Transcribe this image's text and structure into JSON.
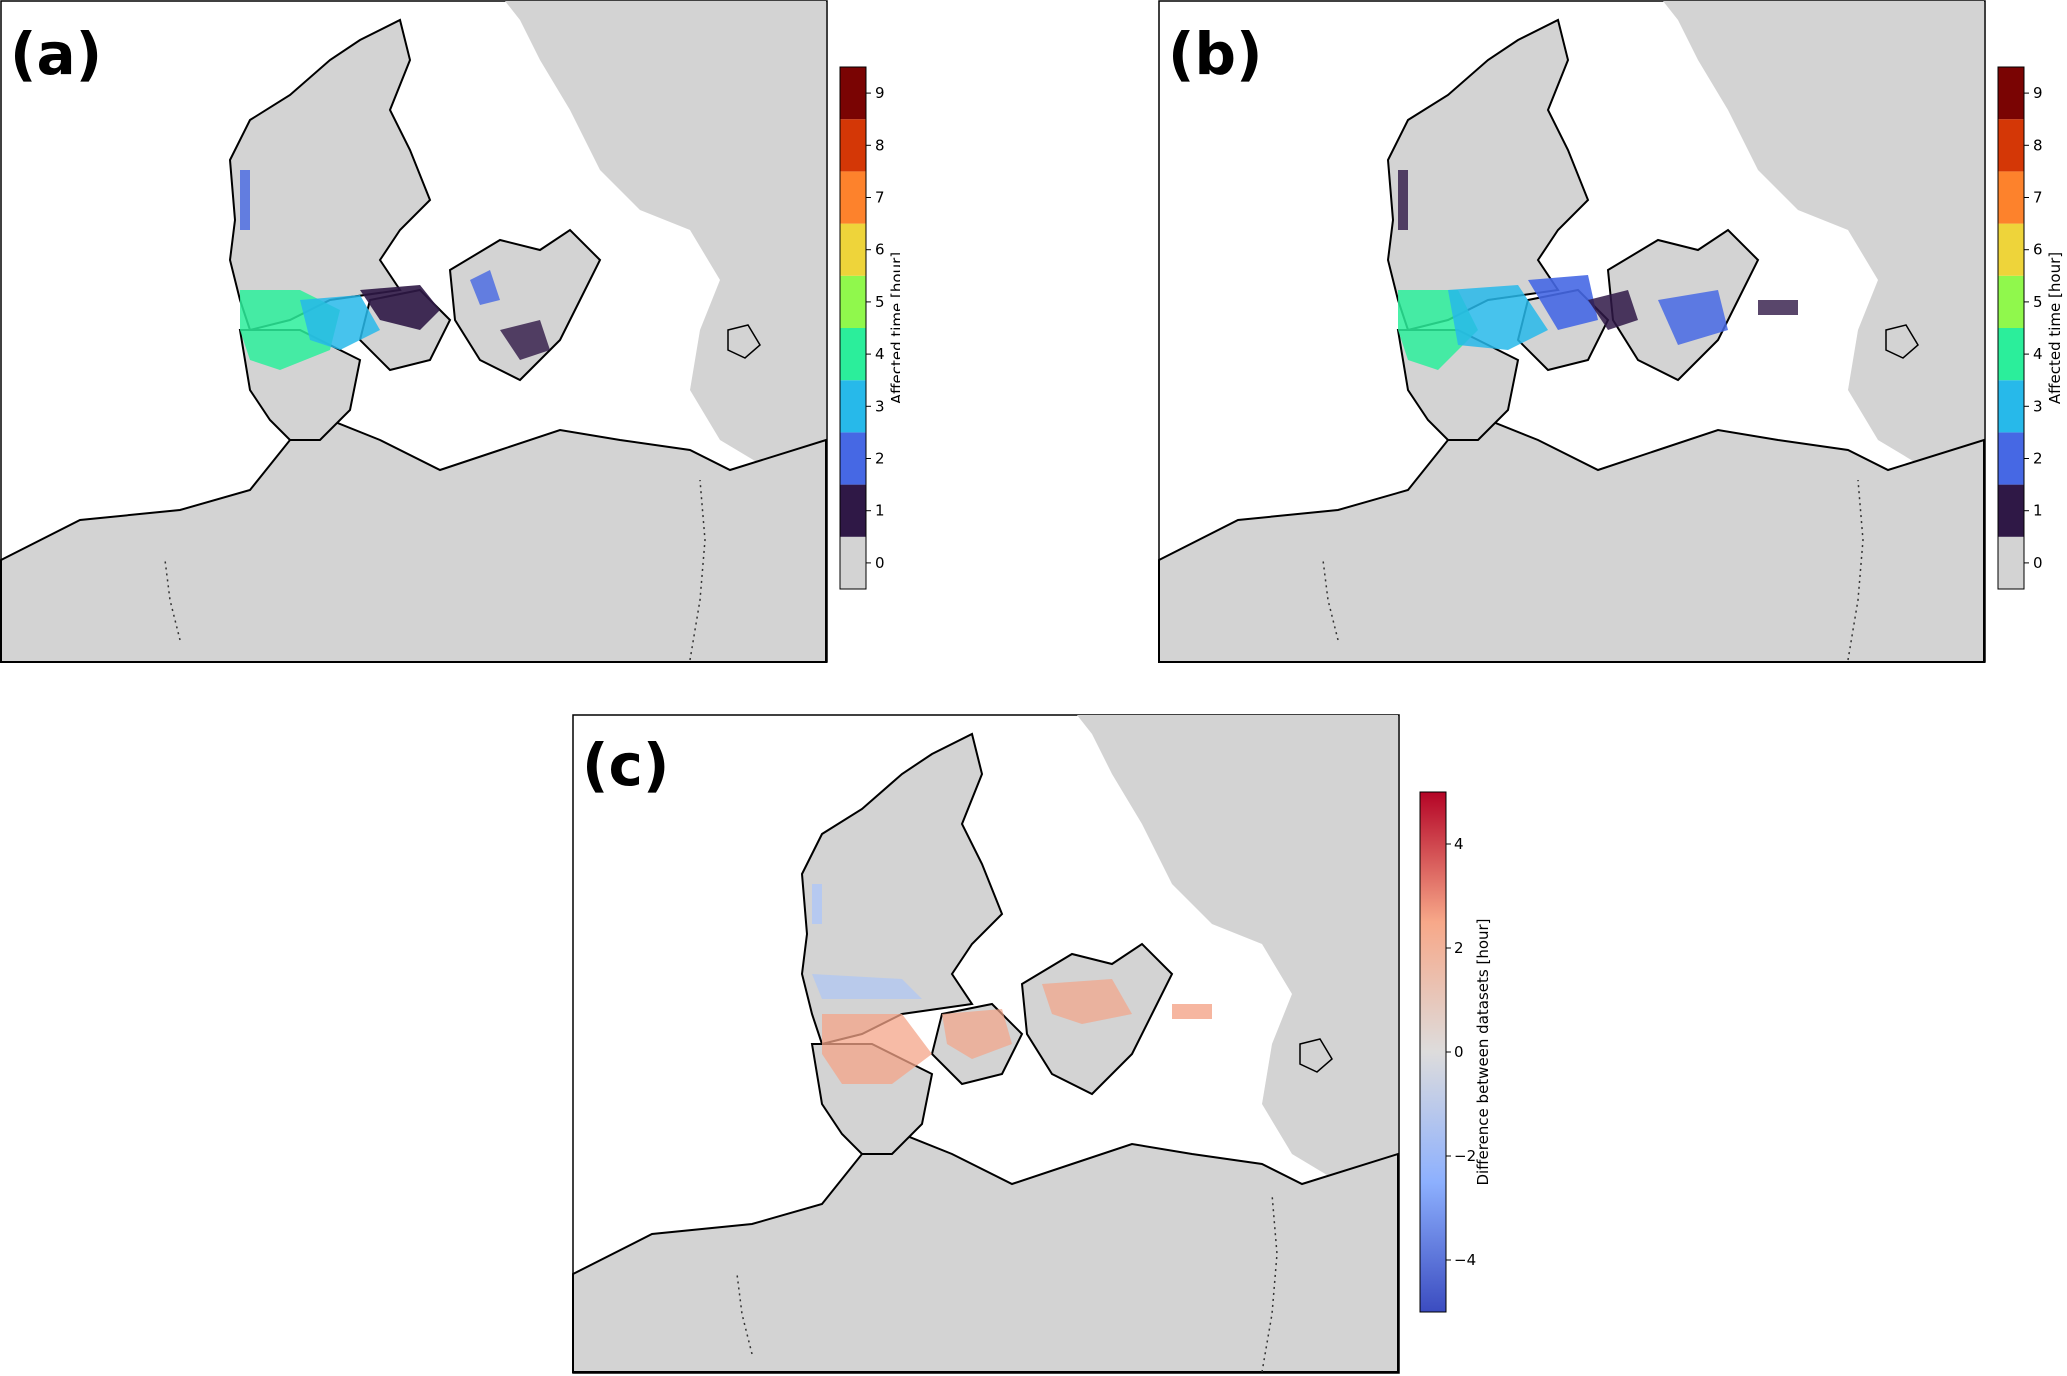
{
  "panels": [
    {
      "id": "a",
      "letter": "(a)",
      "colorbar": {
        "label": "Affected time [hour]",
        "type": "discrete",
        "ticks": [
          "0",
          "1",
          "2",
          "3",
          "4",
          "5",
          "6",
          "7",
          "8",
          "9"
        ],
        "colors": [
          "#d3d3d3",
          "#2f1846",
          "#4668e4",
          "#27b9ea",
          "#2bee9b",
          "#90f84c",
          "#eed43a",
          "#fd822c",
          "#d43706",
          "#7a0403"
        ]
      }
    },
    {
      "id": "b",
      "letter": "(b)",
      "colorbar": {
        "label": "Affected time [hour]",
        "type": "discrete",
        "ticks": [
          "0",
          "1",
          "2",
          "3",
          "4",
          "5",
          "6",
          "7",
          "8",
          "9"
        ],
        "colors": [
          "#d3d3d3",
          "#2f1846",
          "#4668e4",
          "#27b9ea",
          "#2bee9b",
          "#90f84c",
          "#eed43a",
          "#fd822c",
          "#d43706",
          "#7a0403"
        ]
      }
    },
    {
      "id": "c",
      "letter": "(c)",
      "colorbar": {
        "label": "Difference between datasets [hour]",
        "type": "continuous",
        "ticks": [
          "4",
          "2",
          "0",
          "−2",
          "−4"
        ],
        "colors": [
          "#b40426",
          "#f7a889",
          "#dddcdc",
          "#8db0fe",
          "#3b4cc0"
        ]
      }
    }
  ],
  "colors": {
    "land": "#d3d3d3",
    "sea": "#ffffff",
    "coast": "#000000"
  }
}
